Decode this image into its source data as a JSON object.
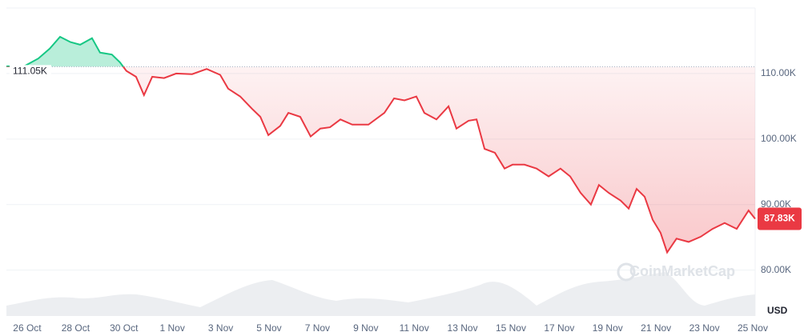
{
  "chart_data": {
    "type": "line",
    "x": [
      -0.86,
      -0.13,
      0.46,
      0.93,
      1.36,
      1.79,
      2.19,
      2.68,
      3.01,
      3.5,
      3.84,
      4.1,
      4.5,
      4.83,
      5.17,
      5.66,
      6.16,
      6.82,
      7.42,
      7.98,
      8.31,
      8.81,
      9.3,
      9.64,
      9.97,
      10.46,
      10.8,
      11.29,
      11.72,
      12.12,
      12.52,
      12.95,
      13.44,
      14.11,
      14.77,
      15.17,
      15.6,
      16.09,
      16.42,
      16.92,
      17.42,
      17.75,
      18.25,
      18.58,
      18.91,
      19.34,
      19.74,
      20.07,
      20.56,
      21.06,
      21.56,
      22.05,
      22.45,
      22.88,
      23.31,
      23.64,
      24.04,
      24.54,
      24.87,
      25.2,
      25.53,
      25.86,
      26.19,
      26.46,
      26.85,
      27.35,
      27.85,
      28.34,
      28.84,
      29.34,
      29.83,
      30.1
    ],
    "series": [
      {
        "color": "#ea3943",
        "values": [
          111.1,
          111.1,
          112.3,
          113.8,
          115.6,
          114.8,
          114.4,
          115.4,
          113.2,
          112.9,
          111.7,
          110.4,
          109.5,
          106.7,
          109.5,
          109.3,
          110,
          109.9,
          110.7,
          109.8,
          107.7,
          106.5,
          104.6,
          103.4,
          100.6,
          102,
          104,
          103.4,
          100.4,
          101.6,
          101.8,
          103,
          102.2,
          102.2,
          104,
          106.2,
          105.9,
          106.5,
          104,
          103,
          105,
          101.6,
          102.8,
          103,
          98.5,
          97.9,
          95.5,
          96.1,
          96.1,
          95.5,
          94.3,
          95.5,
          94.3,
          91.8,
          90,
          93,
          91.8,
          90.6,
          89.4,
          92.4,
          91.2,
          87.7,
          85.7,
          82.7,
          84.8,
          84.3,
          85.1,
          86.3,
          87.2,
          86.3,
          89.1,
          87.83
        ]
      }
    ],
    "up_color": "#16c784",
    "baseline": {
      "value": 111.05,
      "label": "111.05K"
    },
    "last_value_label": "87.83K",
    "xlim": [
      -0.86,
      30.1
    ],
    "ylim": [
      73,
      120
    ],
    "xticks": [
      {
        "value": 0,
        "label": "26 Oct"
      },
      {
        "value": 2,
        "label": "28 Oct"
      },
      {
        "value": 4,
        "label": "30 Oct"
      },
      {
        "value": 6,
        "label": "1 Nov"
      },
      {
        "value": 8,
        "label": "3 Nov"
      },
      {
        "value": 10,
        "label": "5 Nov"
      },
      {
        "value": 12,
        "label": "7 Nov"
      },
      {
        "value": 14,
        "label": "9 Nov"
      },
      {
        "value": 16,
        "label": "11 Nov"
      },
      {
        "value": 18,
        "label": "13 Nov"
      },
      {
        "value": 20,
        "label": "15 Nov"
      },
      {
        "value": 22,
        "label": "17 Nov"
      },
      {
        "value": 24,
        "label": "19 Nov"
      },
      {
        "value": 26,
        "label": "21 Nov"
      },
      {
        "value": 28,
        "label": "23 Nov"
      },
      {
        "value": 30,
        "label": "25 Nov"
      }
    ],
    "yticks": [
      {
        "value": 80,
        "label": "80.00K"
      },
      {
        "value": 90,
        "label": "90.00K"
      },
      {
        "value": 100,
        "label": "100.00K"
      },
      {
        "value": 110,
        "label": "110.00K"
      }
    ],
    "grid": true,
    "currency": "USD",
    "watermark": "CoinMarketCap"
  }
}
